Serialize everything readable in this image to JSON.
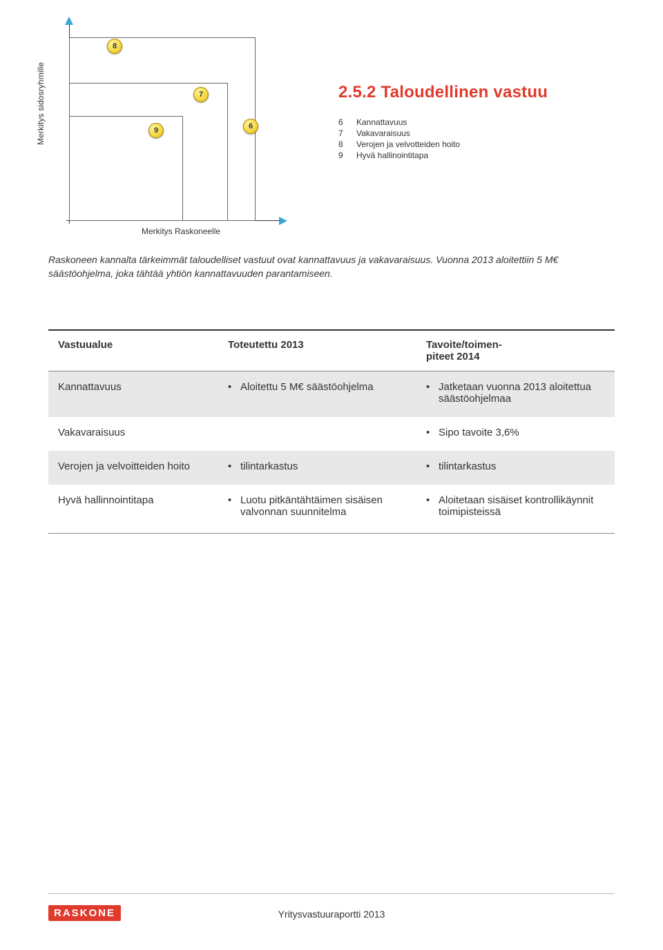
{
  "chart": {
    "y_axis_label": "Merkitys sidosryhmille",
    "x_axis_label": "Merkitys Raskoneelle",
    "bubbles": {
      "b6": "6",
      "b7": "7",
      "b8": "8",
      "b9": "9"
    },
    "bubble_fill": "#f4d73e",
    "arrow_color": "#3ba5d8"
  },
  "section_title": "2.5.2 Taloudellinen vastuu",
  "legend": [
    {
      "num": "6",
      "label": "Kannattavuus"
    },
    {
      "num": "7",
      "label": "Vakavaraisuus"
    },
    {
      "num": "8",
      "label": "Verojen ja velvotteiden hoito"
    },
    {
      "num": "9",
      "label": "Hyvä hallinointitapa"
    }
  ],
  "intro_text": "Raskoneen kannalta tärkeimmät taloudelliset vastuut ovat kannattavuus ja vakavaraisuus. Vuonna 2013 aloitettiin 5 M€ säästöohjelma, joka tähtää yhtiön kannattavuuden parantamiseen.",
  "table": {
    "columns": [
      "Vastuualue",
      "Toteutettu 2013",
      "Tavoite/toimen-piteet 2014"
    ],
    "rows": [
      {
        "alt": true,
        "area": "Kannattavuus",
        "done": [
          "Aloitettu 5 M€ säästöohjelma"
        ],
        "target": [
          "Jatketaan vuonna 2013 aloitettua säästöohjelmaa"
        ]
      },
      {
        "alt": false,
        "area": "Vakavaraisuus",
        "done": [],
        "target": [
          "Sipo tavoite 3,6%"
        ]
      },
      {
        "alt": true,
        "area": "Verojen ja velvoitteiden hoito",
        "done": [
          "tilintarkastus"
        ],
        "target": [
          "tilintarkastus"
        ]
      },
      {
        "alt": false,
        "area": "Hyvä hallinnointitapa",
        "done": [
          "Luotu pitkäntähtäimen sisäisen valvonnan suunnitelma"
        ],
        "target": [
          "Aloitetaan sisäiset kontrollikäynnit toimipisteissä"
        ]
      }
    ]
  },
  "logo_text": "RASKONE",
  "footer_text": "Yritysvastuuraportti 2013",
  "colors": {
    "accent_red": "#e03a2d",
    "accent_blue": "#3ba5d8",
    "bubble_yellow": "#f4d73e",
    "alt_row_bg": "#e8e8e8"
  }
}
